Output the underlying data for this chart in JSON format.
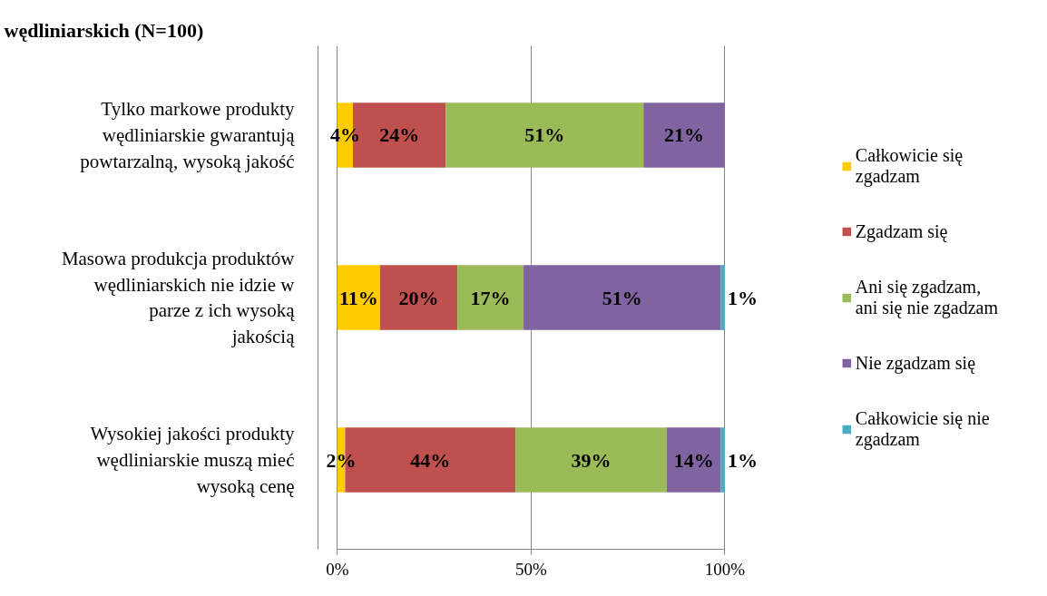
{
  "chart_data": {
    "type": "bar",
    "orientation": "horizontal",
    "stacked": true,
    "title": "wędliniarskich (N=100)",
    "categories": [
      "Tylko markowe produkty wędliniarskie gwarantują powtarzalną, wysoką jakość",
      "Masowa produkcja produktów wędliniarskich nie idzie w parze z ich wysoką jakością",
      "Wysokiej jakości produkty wędliniarskie muszą mieć wysoką cenę"
    ],
    "series": [
      {
        "name": "Całkowicie się zgadzam",
        "color": "#ffcc00",
        "values": [
          4,
          11,
          2
        ],
        "value_labels": [
          "4%",
          "11%",
          "2%"
        ]
      },
      {
        "name": "Zgadzam się",
        "color": "#c0504d",
        "values": [
          24,
          20,
          44
        ],
        "value_labels": [
          "24%",
          "20%",
          "44%"
        ]
      },
      {
        "name": "Ani się zgadzam, ani się nie zgadzam",
        "color": "#9bbb59",
        "values": [
          51,
          17,
          39
        ],
        "value_labels": [
          "51%",
          "17%",
          "39%"
        ]
      },
      {
        "name": "Nie zgadzam się",
        "color": "#8064a2",
        "values": [
          21,
          51,
          14
        ],
        "value_labels": [
          "21%",
          "51%",
          "14%"
        ]
      },
      {
        "name": "Całkowicie się nie zgadzam",
        "color": "#4bacc6",
        "values": [
          null,
          1,
          1
        ],
        "value_labels": [
          null,
          "1%",
          "1%"
        ]
      }
    ],
    "xlim": [
      0,
      100
    ],
    "xticks": [
      {
        "value": 0,
        "label": "0%"
      },
      {
        "value": 50,
        "label": "50%"
      },
      {
        "value": 100,
        "label": "100%"
      }
    ],
    "grid": "x",
    "legend": "right"
  }
}
